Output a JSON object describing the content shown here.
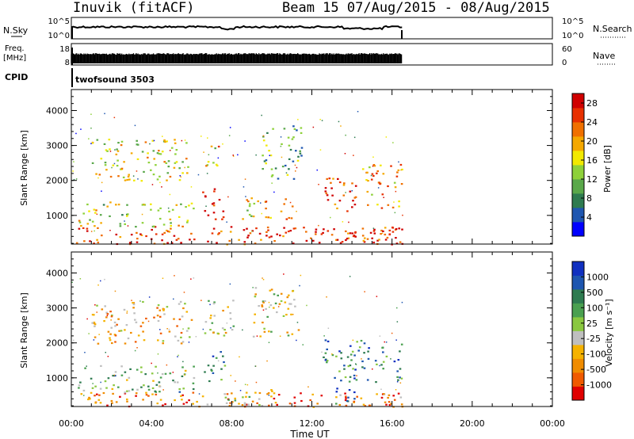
{
  "header": {
    "station": "Inuvik (fitACF)",
    "beam_date": "Beam 15 07/Aug/2015 - 08/Aug/2015"
  },
  "strip_labels": {
    "nsky": "N.Sky",
    "nsky_ticks": [
      "10^5",
      "10^0"
    ],
    "nsearch": "N.Search",
    "nsearch_ticks": [
      "10^5",
      "10^0"
    ],
    "freq_line1": "Freq.",
    "freq_line2": "[MHz]",
    "freq_ticks": [
      "18",
      "8"
    ],
    "nave": "Nave",
    "nave_ticks": [
      "60",
      "0"
    ],
    "cpid": "CPID",
    "cpid_value": "twofsound 3503"
  },
  "colors": {
    "power": [
      "#0000ff",
      "#1e56b0",
      "#2e7b50",
      "#5aa84a",
      "#8ed13a",
      "#f2e900",
      "#f5a800",
      "#f07000",
      "#e83000",
      "#d00000"
    ],
    "velocity": [
      "#e00000",
      "#f05a00",
      "#f08c00",
      "#f5b200",
      "#bfbfbf",
      "#8ac840",
      "#4aa050",
      "#2e7b50",
      "#1e56b0",
      "#1030c0"
    ]
  },
  "chart_data": [
    {
      "type": "heatmap",
      "name": "power",
      "ylabel": "Slant Range [km]",
      "yticks": [
        "1000",
        "2000",
        "3000",
        "4000"
      ],
      "ylim": [
        180,
        4600
      ],
      "xlim": [
        "00:00",
        "24:00"
      ],
      "data_end_time": "16:30",
      "colorbar": {
        "label": "Power [dB]",
        "ticks": [
          "4",
          "8",
          "12",
          "16",
          "20",
          "24",
          "28"
        ],
        "range": [
          0,
          30
        ]
      },
      "echo_regions": [
        {
          "t0": 0.0,
          "t1": 16.5,
          "r0": 180,
          "r1": 700,
          "level": 0.85
        },
        {
          "t0": 0.3,
          "t1": 6.2,
          "r0": 700,
          "r1": 1400,
          "level": 0.5
        },
        {
          "t0": 1.0,
          "t1": 6.0,
          "r0": 2000,
          "r1": 3200,
          "level": 0.55
        },
        {
          "t0": 6.5,
          "t1": 7.7,
          "r0": 900,
          "r1": 1800,
          "level": 0.9
        },
        {
          "t0": 6.5,
          "t1": 7.5,
          "r0": 2400,
          "r1": 3000,
          "level": 0.6
        },
        {
          "t0": 8.2,
          "t1": 9.4,
          "r0": 900,
          "r1": 1700,
          "level": 0.55
        },
        {
          "t0": 9.5,
          "t1": 11.0,
          "r0": 900,
          "r1": 1500,
          "level": 0.75
        },
        {
          "t0": 9.5,
          "t1": 11.5,
          "r0": 2000,
          "r1": 3600,
          "level": 0.35
        },
        {
          "t0": 12.5,
          "t1": 14.5,
          "r0": 1100,
          "r1": 2100,
          "level": 0.85
        },
        {
          "t0": 14.5,
          "t1": 16.5,
          "r0": 1200,
          "r1": 2500,
          "level": 0.65
        },
        {
          "t0": 12.0,
          "t1": 16.5,
          "r0": 180,
          "r1": 700,
          "level": 0.9
        }
      ]
    },
    {
      "type": "heatmap",
      "name": "velocity",
      "ylabel": "Slant Range [km]",
      "yticks": [
        "1000",
        "2000",
        "3000",
        "4000"
      ],
      "ylim": [
        180,
        4600
      ],
      "xlim": [
        "00:00",
        "24:00"
      ],
      "data_end_time": "16:30",
      "colorbar": {
        "label": "Velocity [m s⁻¹]",
        "ticks": [
          "1000",
          "500",
          "100",
          "25",
          "-25",
          "-100",
          "-500",
          "-1000"
        ]
      },
      "echo_regions": [
        {
          "t0": 0.0,
          "t1": 16.5,
          "r0": 180,
          "r1": 600,
          "level": 0.2
        },
        {
          "t0": 0.3,
          "t1": 6.2,
          "r0": 600,
          "r1": 1400,
          "level": 0.6
        },
        {
          "t0": 1.0,
          "t1": 6.0,
          "r0": 2000,
          "r1": 3200,
          "level": 0.35
        },
        {
          "t0": 6.5,
          "t1": 8.2,
          "r0": 2200,
          "r1": 3300,
          "level": 0.45
        },
        {
          "t0": 6.5,
          "t1": 7.7,
          "r0": 900,
          "r1": 1800,
          "level": 0.7
        },
        {
          "t0": 9.0,
          "t1": 11.3,
          "r0": 2200,
          "r1": 3600,
          "level": 0.45
        },
        {
          "t0": 7.5,
          "t1": 10.0,
          "r0": 200,
          "r1": 700,
          "level": 0.45
        },
        {
          "t0": 12.5,
          "t1": 16.5,
          "r0": 900,
          "r1": 2100,
          "level": 0.75
        },
        {
          "t0": 13.0,
          "t1": 14.2,
          "r0": 200,
          "r1": 900,
          "level": 0.85
        },
        {
          "t0": 14.0,
          "t1": 16.5,
          "r0": 180,
          "r1": 600,
          "level": 0.2
        }
      ]
    }
  ],
  "time_axis": {
    "ticks": [
      "00:00",
      "04:00",
      "08:00",
      "12:00",
      "16:00",
      "20:00",
      "00:00"
    ],
    "label": "Time UT"
  }
}
